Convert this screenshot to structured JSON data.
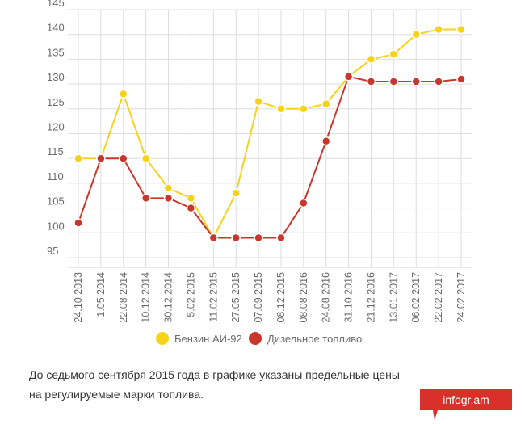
{
  "chart_data": {
    "type": "line",
    "categories": [
      "24.10.2013",
      "1.05.2014",
      "22.08.2014",
      "10.12.2014",
      "30.12.2014",
      "5.02.2015",
      "11.02.2015",
      "27.05.2015",
      "07.09.2015",
      "08.12.2015",
      "08.08.2016",
      "24.08.2016",
      "31.10.2016",
      "21.12.2016",
      "13.01.2017",
      "06.02.2017",
      "22.02.2017",
      "24.02.2017"
    ],
    "series": [
      {
        "name": "Бензин АИ-92",
        "color": "#f7d21b",
        "values": [
          115,
          115,
          128,
          115,
          109,
          107,
          99,
          108,
          126.5,
          125,
          125,
          126,
          131.5,
          135,
          136,
          140,
          141,
          141
        ]
      },
      {
        "name": "Дизельное топливо",
        "color": "#c8372d",
        "values": [
          102,
          115,
          115,
          107,
          107,
          105,
          99,
          99,
          99,
          99,
          106,
          118.5,
          131.5,
          130.5,
          130.5,
          130.5,
          130.5,
          131
        ]
      }
    ],
    "y_ticks": [
      "145",
      "140",
      "135",
      "130",
      "125",
      "120",
      "115",
      "110",
      "105",
      "100",
      "95"
    ],
    "ylim": [
      93,
      145
    ],
    "grid": true,
    "legend_position": "bottom-center"
  },
  "caption": {
    "line1": "До седьмого сентября 2015 года в графике указаны предельные цены",
    "line2": "на регулируемые марки топлива."
  },
  "brand": {
    "logo_text": "infogr.am",
    "color": "#d9302b"
  }
}
